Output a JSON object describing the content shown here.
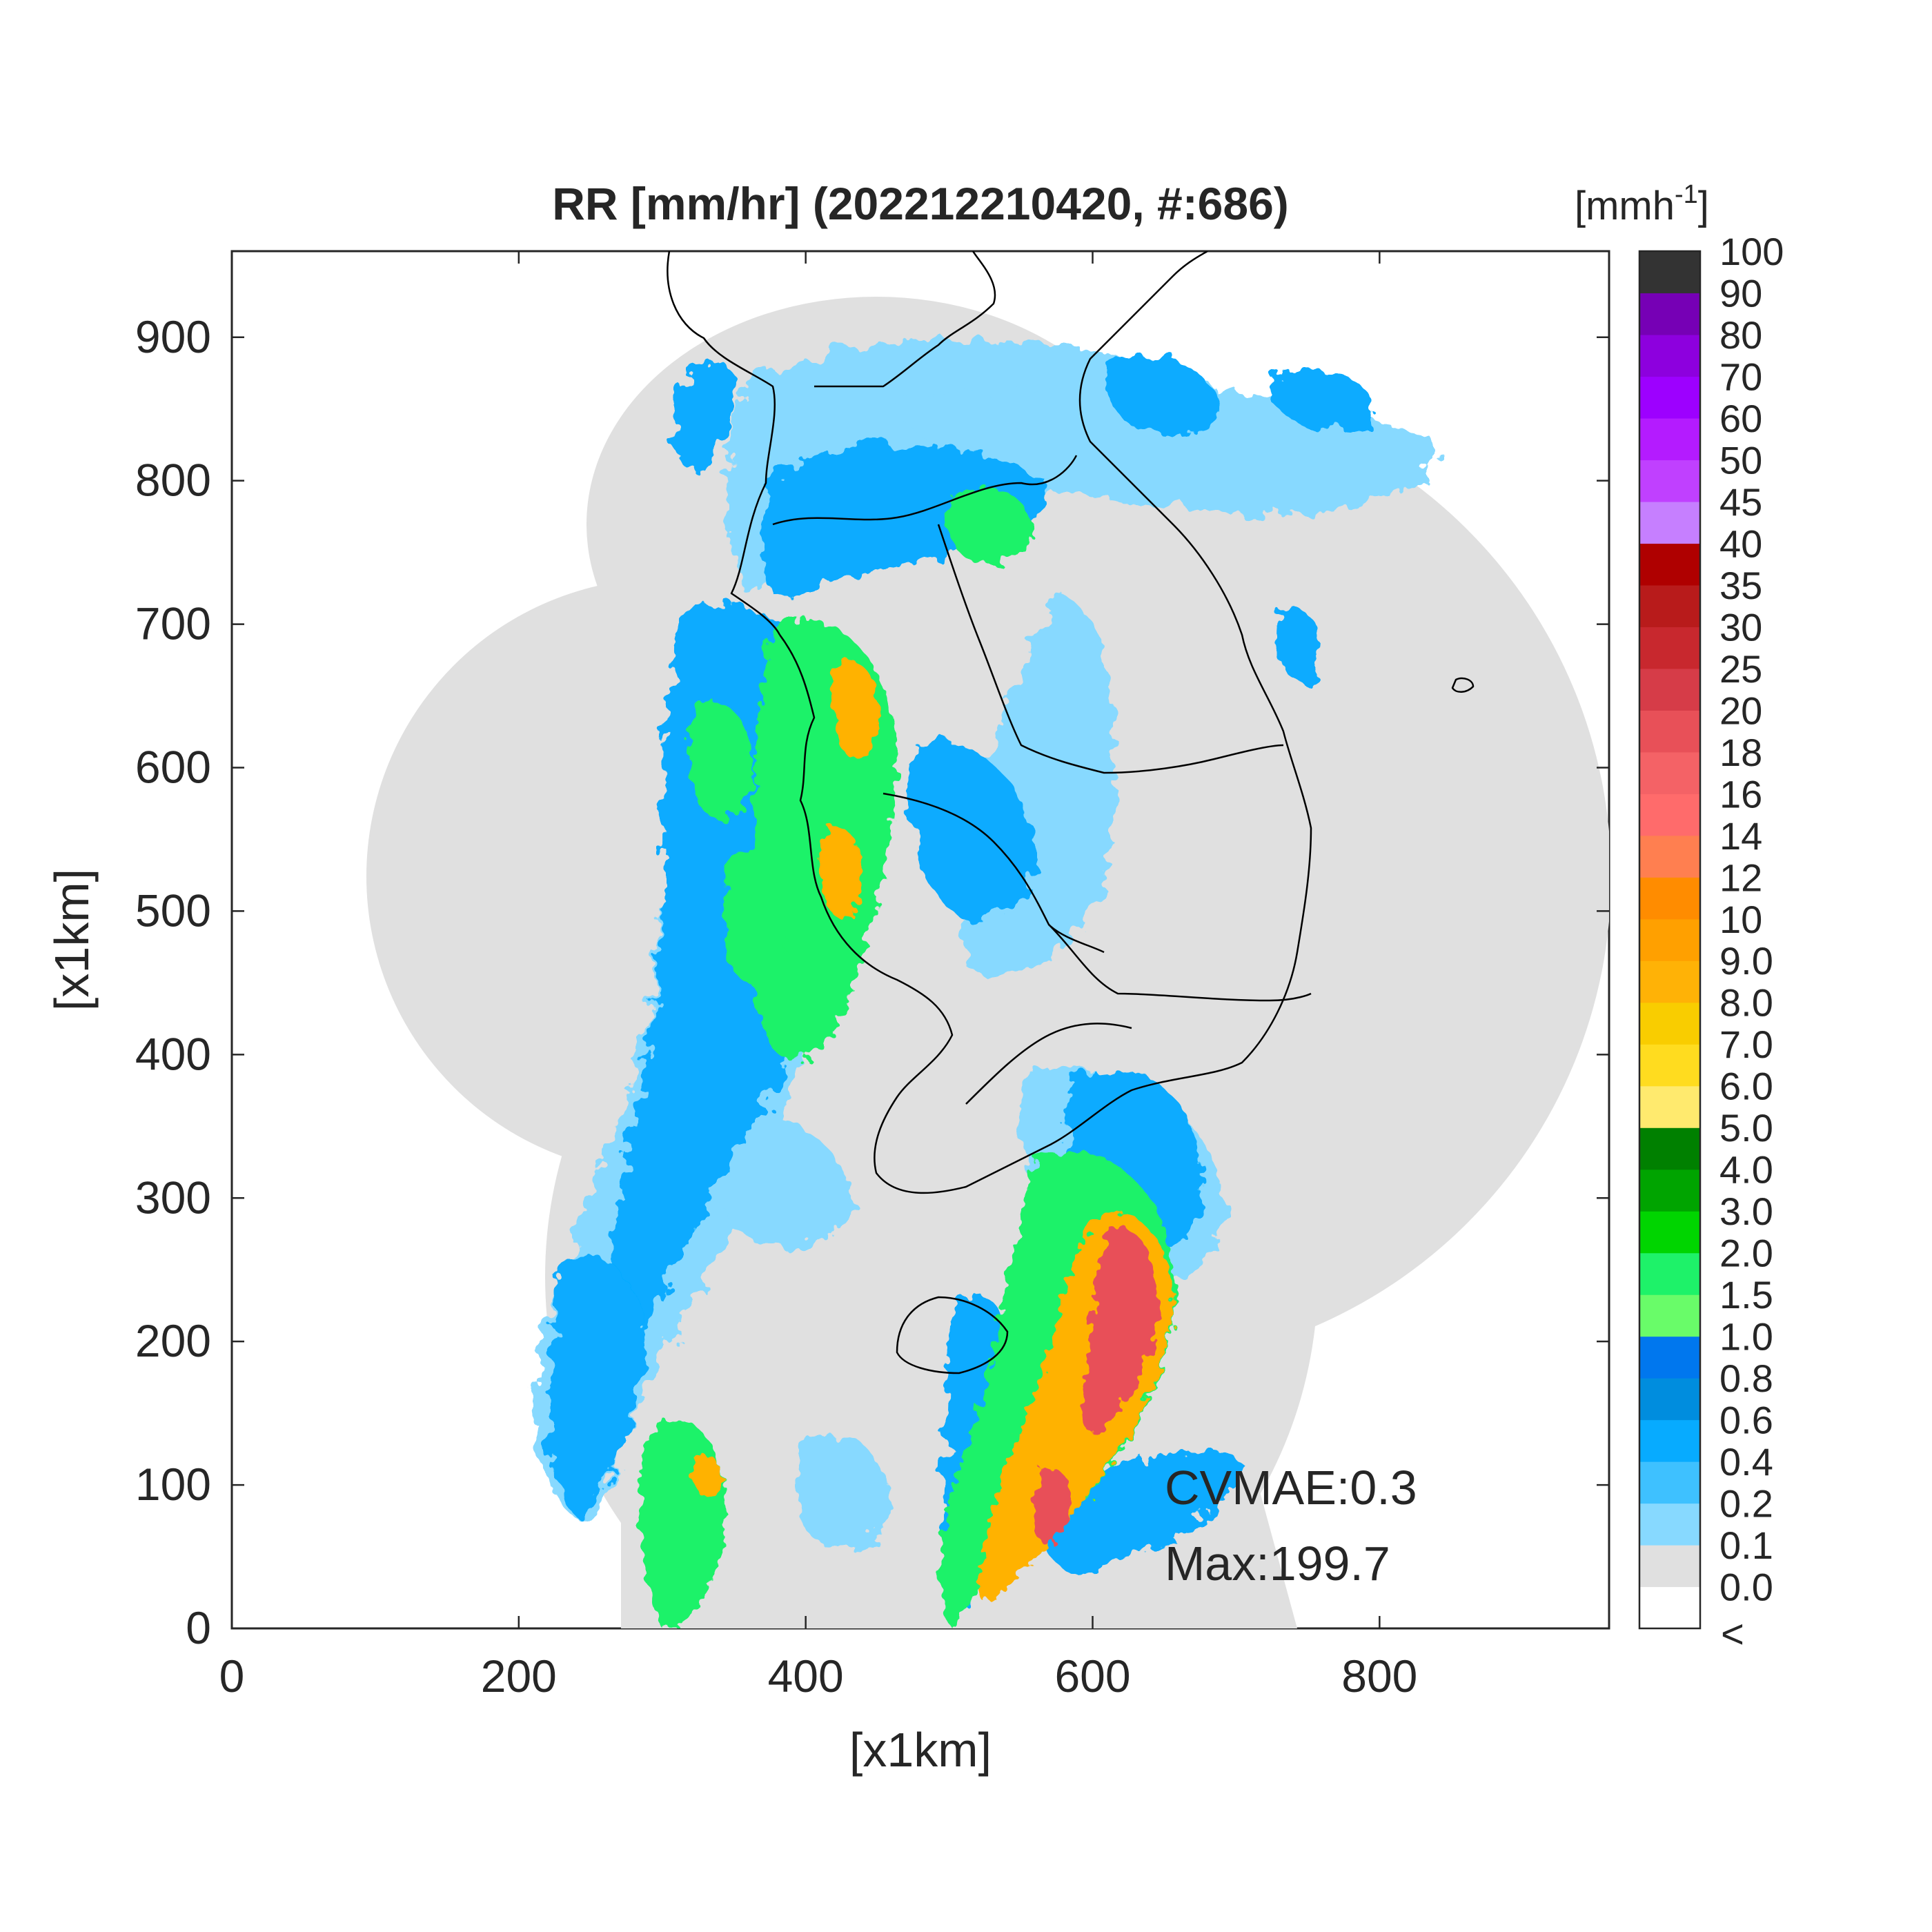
{
  "title": "RR [mm/hr] (202212210420, #:686)",
  "xlabel": "[x1km]",
  "ylabel": "[x1km]",
  "x_ticks": [
    "0",
    "200",
    "400",
    "600",
    "800"
  ],
  "x_tick_values": [
    0,
    200,
    400,
    600,
    800
  ],
  "y_ticks": [
    "0",
    "100",
    "200",
    "300",
    "400",
    "500",
    "600",
    "700",
    "800",
    "900"
  ],
  "y_tick_values": [
    0,
    100,
    200,
    300,
    400,
    500,
    600,
    700,
    800,
    900
  ],
  "xlim": [
    0,
    960
  ],
  "ylim": [
    0,
    960
  ],
  "colorbar": {
    "unit_label": "[mmh",
    "unit_sup": "-1",
    "unit_close": "]",
    "below_label": "<",
    "labels": [
      "0.0",
      "0.1",
      "0.2",
      "0.4",
      "0.6",
      "0.8",
      "1.0",
      "1.5",
      "2.0",
      "3.0",
      "4.0",
      "5.0",
      "6.0",
      "7.0",
      "8.0",
      "9.0",
      "10",
      "12",
      "14",
      "16",
      "18",
      "20",
      "25",
      "30",
      "35",
      "40",
      "45",
      "50",
      "60",
      "70",
      "80",
      "90",
      "100"
    ],
    "colors": [
      "#ffffff",
      "#e0e0e0",
      "#87d9ff",
      "#3ec1ff",
      "#07abff",
      "#008dde",
      "#0077ee",
      "#69fc69",
      "#1ef269",
      "#00d500",
      "#00a400",
      "#008000",
      "#ffea6e",
      "#ffdc1f",
      "#f9cd00",
      "#ffb206",
      "#ffa000",
      "#ff8c00",
      "#ff7f50",
      "#ff6b6b",
      "#f46266",
      "#e85058",
      "#d63c48",
      "#c8282e",
      "#b81b1b",
      "#af0000",
      "#c67fff",
      "#c040ff",
      "#b41bff",
      "#9d00ff",
      "#8d00de",
      "#7600b5",
      "#333333"
    ]
  },
  "annotations": {
    "cvmae": "CVMAE:0.3",
    "max": "Max:199.7"
  },
  "colors": {
    "no_rain": "#e0e0e0",
    "light": "#87d9ff",
    "medium": "#07abff",
    "green": "#1ef269",
    "yellow": "#ffdc1f",
    "orange": "#ff8c00",
    "red": "#d63c48",
    "coast": "#000000"
  }
}
